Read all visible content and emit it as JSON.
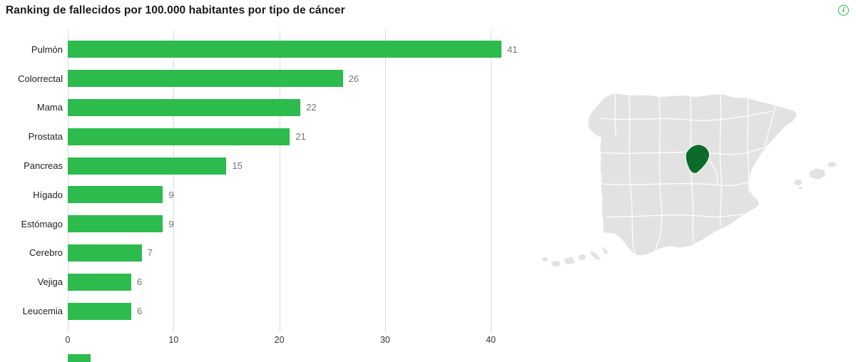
{
  "header": {
    "title": "Ranking de fallecidos por 100.000 habitantes por tipo de cáncer",
    "info_icon_label": "i",
    "info_icon_color": "#2dbb4e"
  },
  "chart_data": {
    "type": "bar",
    "orientation": "horizontal",
    "title": "Ranking de fallecidos por 100.000 habitantes por tipo de cáncer",
    "categories": [
      "Pulmón",
      "Colorrectal",
      "Mama",
      "Prostata",
      "Pancreas",
      "Hígado",
      "Estómago",
      "Cerebro",
      "Vejiga",
      "Leucemia"
    ],
    "values": [
      41,
      26,
      22,
      21,
      15,
      9,
      9,
      7,
      6,
      6
    ],
    "xlabel": "",
    "ylabel": "",
    "xlim": [
      0,
      42
    ],
    "xticks": [
      0,
      10,
      20,
      30,
      40
    ],
    "grid": true,
    "legend": false,
    "bar_color": "#2dbb4e",
    "value_label_color": "#757575",
    "gridline_color": "#dcdcdc"
  },
  "map": {
    "description": "Mapa de España por provincias",
    "highlighted_region": "Madrid",
    "highlighted_region_color": "#0c6b2b",
    "land_color": "#e2e2e2",
    "border_color": "#ffffff"
  }
}
